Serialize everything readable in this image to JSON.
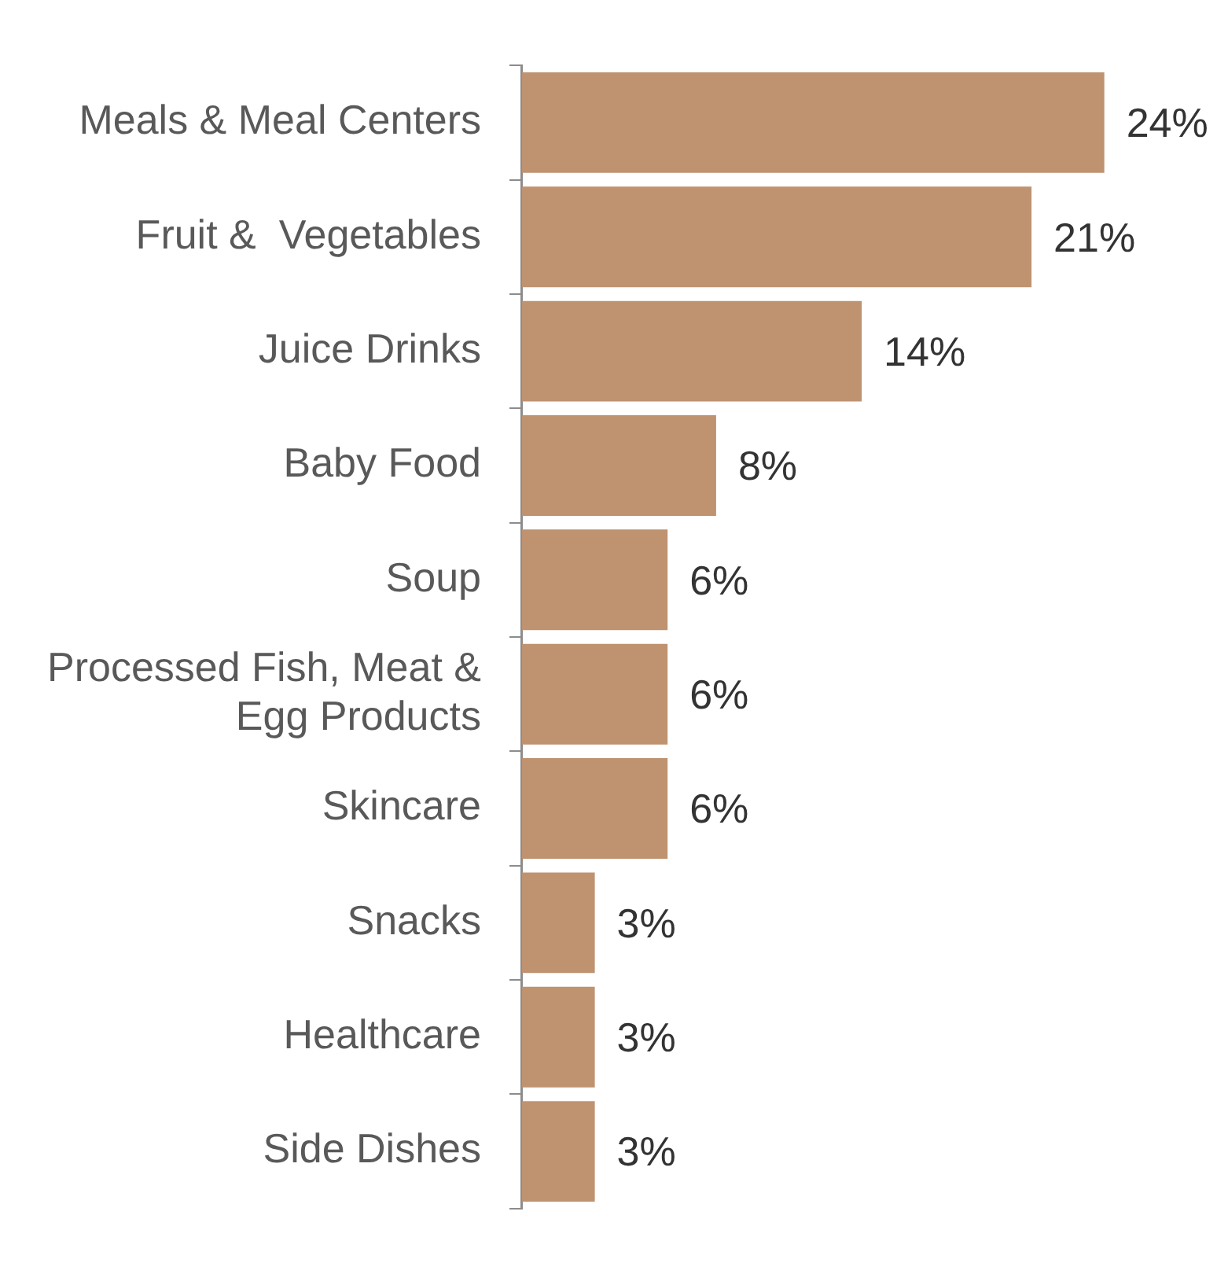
{
  "chart_data": {
    "type": "bar",
    "orientation": "horizontal",
    "categories": [
      "Meals & Meal Centers",
      "Fruit &  Vegetables",
      "Juice Drinks",
      "Baby Food",
      "Soup",
      "Processed Fish, Meat & Egg Products",
      "Skincare",
      "Snacks",
      "Healthcare",
      "Side Dishes"
    ],
    "values": [
      24,
      21,
      14,
      8,
      6,
      6,
      6,
      3,
      3,
      3
    ],
    "color": "#bf9270",
    "data_labels": true,
    "value_labels": [
      "24%",
      "21%",
      "14%",
      "8%",
      "6%",
      "6%",
      "6%",
      "3%",
      "3%",
      "3%"
    ],
    "tick_labels": "y"
  }
}
